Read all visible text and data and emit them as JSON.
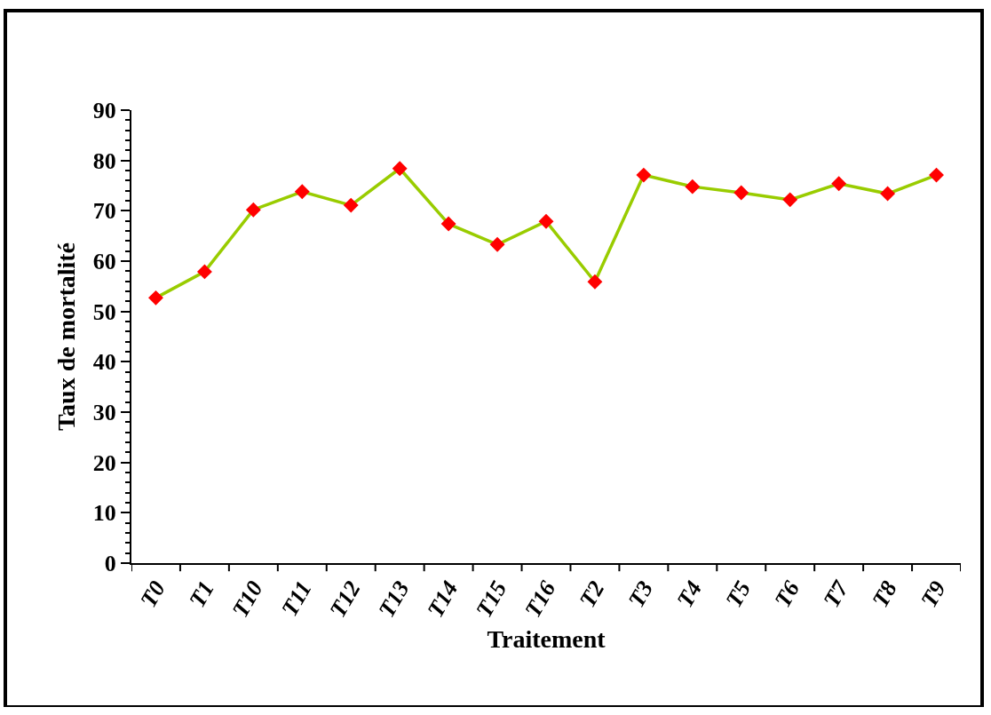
{
  "chart_data": {
    "type": "line",
    "xlabel": "Traitement",
    "ylabel": "Taux de mortalité",
    "categories": [
      "T0",
      "T1",
      "T10",
      "T11",
      "T12",
      "T13",
      "T14",
      "T15",
      "T16",
      "T2",
      "T3",
      "T4",
      "T5",
      "T6",
      "T7",
      "T8",
      "T9"
    ],
    "series": [
      {
        "color": "#99cc00",
        "colors": [
          "#ff0000",
          "#ff0000",
          "#ff0000",
          "#ff0000",
          "#ff0000",
          "#ff0000",
          "#ff0000",
          "#ff0000",
          "#ff0000",
          "#ff0000",
          "#ff0000",
          "#ff0000",
          "#ff0000",
          "#ff0000",
          "#ff0000",
          "#ff0000",
          "#ff0000"
        ],
        "values": [
          52.7,
          57.9,
          70.2,
          73.8,
          71.1,
          78.4,
          67.4,
          63.3,
          67.9,
          55.9,
          77.1,
          74.8,
          73.6,
          72.2,
          75.4,
          73.4,
          77.1
        ]
      }
    ],
    "ylim": [
      0,
      90
    ],
    "yticks": [
      0,
      10,
      20,
      30,
      40,
      50,
      60,
      70,
      80,
      90
    ],
    "grid": false,
    "legend": false,
    "marker": "diamond",
    "line_style": "solid"
  }
}
